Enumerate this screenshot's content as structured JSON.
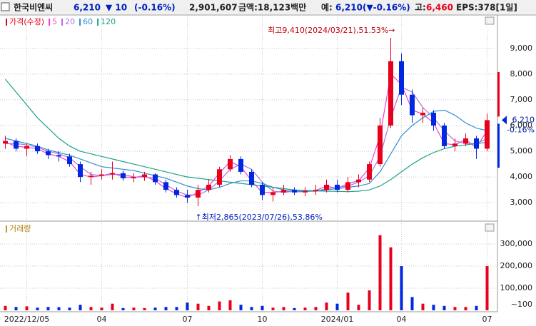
{
  "header": {
    "name": "한국비엔씨",
    "price": "6,210",
    "change": "▼ 10",
    "change_rate": "(-0.16%)",
    "volume": "2,901,607",
    "amount": "금액:18,123백만",
    "expected_label": "예:",
    "expected": "6,210(▼-0.16%)",
    "high_label": "고:",
    "high": "6,460",
    "eps": "EPS:378[1일]"
  },
  "chart_data": [
    {
      "type": "candlestick",
      "legend": "가격(수정)",
      "up_color": "#e8001c",
      "down_color": "#0028e0",
      "categories": [
        null,
        null,
        "2022/12/05",
        null,
        null,
        null,
        null,
        null,
        null,
        "04",
        null,
        null,
        null,
        null,
        null,
        null,
        null,
        "07",
        null,
        null,
        null,
        null,
        null,
        null,
        "10",
        null,
        null,
        null,
        null,
        null,
        null,
        "2024/01",
        null,
        null,
        null,
        null,
        null,
        "04",
        null,
        null,
        null,
        null,
        null,
        null,
        null,
        "07"
      ],
      "open": [
        5300,
        5400,
        5100,
        5200,
        5000,
        4850,
        4800,
        4500,
        4000,
        4050,
        4100,
        4150,
        3950,
        4000,
        4100,
        3800,
        3500,
        3300,
        3200,
        3500,
        3700,
        4300,
        4700,
        4200,
        3700,
        3300,
        3400,
        3500,
        3400,
        3450,
        3500,
        3700,
        3500,
        3800,
        3900,
        4500,
        6000,
        8500,
        7200,
        6400,
        6500,
        6000,
        5200,
        5300,
        5500,
        5100
      ],
      "high": [
        5600,
        5500,
        5300,
        5300,
        5100,
        5000,
        4900,
        4600,
        4200,
        4300,
        4600,
        4250,
        4150,
        4200,
        4150,
        3900,
        3600,
        3500,
        3700,
        3900,
        4400,
        4850,
        4800,
        4300,
        3800,
        3600,
        3700,
        3600,
        3600,
        3700,
        3900,
        3900,
        4000,
        4100,
        4600,
        6300,
        9410,
        8800,
        7400,
        6700,
        6600,
        6100,
        5500,
        5700,
        5600,
        6460
      ],
      "low": [
        5100,
        5000,
        4800,
        4900,
        4700,
        4600,
        4400,
        3800,
        3700,
        3900,
        3900,
        3850,
        3800,
        3850,
        3700,
        3400,
        3200,
        3000,
        2865,
        3400,
        3600,
        4200,
        4100,
        3600,
        3100,
        3050,
        3300,
        3300,
        3250,
        3300,
        3400,
        3400,
        3400,
        3600,
        3800,
        4400,
        5900,
        6800,
        6100,
        6100,
        5800,
        5100,
        5000,
        5200,
        4700,
        5000
      ],
      "close": [
        5400,
        5100,
        5200,
        5000,
        4850,
        4800,
        4500,
        4000,
        4050,
        4100,
        4150,
        3950,
        4000,
        4100,
        3800,
        3500,
        3300,
        3200,
        3500,
        3700,
        4300,
        4700,
        4200,
        3700,
        3300,
        3400,
        3500,
        3400,
        3450,
        3500,
        3700,
        3500,
        3800,
        3900,
        4500,
        6000,
        8500,
        7200,
        6400,
        6500,
        6000,
        5200,
        5300,
        5500,
        5100,
        6210
      ],
      "series": [
        {
          "name": "5",
          "color": "#f040d0",
          "values": [
            5350,
            5200,
            5150,
            5100,
            4900,
            4800,
            4600,
            4100,
            4000,
            4050,
            4150,
            4000,
            3980,
            4050,
            3850,
            3550,
            3350,
            3200,
            3400,
            3650,
            4150,
            4600,
            4400,
            3850,
            3400,
            3400,
            3450,
            3420,
            3430,
            3480,
            3650,
            3550,
            3750,
            3850,
            4350,
            5600,
            8000,
            7600,
            6600,
            6450,
            6100,
            5300,
            5250,
            5450,
            5150,
            5800
          ]
        },
        {
          "name": "20",
          "color": "#b070e0",
          "values": [
            5300,
            5300,
            5250,
            5150,
            5000,
            4900,
            4750,
            4400,
            4100,
            4050,
            4100,
            4100,
            4000,
            4000,
            3950,
            3700,
            3450,
            3300,
            3300,
            3500,
            3850,
            4300,
            4500,
            4300,
            3800,
            3450,
            3400,
            3450,
            3450,
            3450,
            3550,
            3600,
            3650,
            3800,
            4050,
            4800,
            6300,
            7500,
            7300,
            6700,
            6300,
            5800,
            5400,
            5300,
            5300,
            5500
          ]
        },
        {
          "name": "60",
          "color": "#2f8fd0",
          "values": [
            5500,
            5400,
            5300,
            5200,
            5050,
            4950,
            4850,
            4700,
            4550,
            4400,
            4350,
            4300,
            4250,
            4150,
            4050,
            3950,
            3800,
            3650,
            3550,
            3500,
            3600,
            3750,
            3850,
            3850,
            3750,
            3600,
            3500,
            3450,
            3450,
            3450,
            3500,
            3550,
            3600,
            3650,
            3750,
            4200,
            4900,
            5600,
            6000,
            6300,
            6550,
            6600,
            6400,
            6100,
            5900,
            5800
          ]
        },
        {
          "name": "120",
          "color": "#1fa08a",
          "values": [
            7800,
            7300,
            6800,
            6300,
            5900,
            5500,
            5200,
            5000,
            4900,
            4800,
            4700,
            4600,
            4500,
            4400,
            4300,
            4200,
            4100,
            4000,
            3950,
            3900,
            3850,
            3800,
            3750,
            3700,
            3650,
            3600,
            3550,
            3500,
            3480,
            3460,
            3450,
            3440,
            3430,
            3450,
            3500,
            3650,
            3900,
            4200,
            4500,
            4750,
            4950,
            5100,
            5200,
            5250,
            5300,
            5350
          ]
        }
      ],
      "ylim": [
        2340,
        10270
      ],
      "yticks": [
        {
          "value": 3000,
          "label": "3,000"
        },
        {
          "value": 4000,
          "label": "4,000"
        },
        {
          "value": 5000,
          "label": "5,000"
        },
        {
          "value": 6000,
          "label": "6,000"
        },
        {
          "value": 7000,
          "label": "7,000"
        },
        {
          "value": 8000,
          "label": "8,000"
        },
        {
          "value": 9000,
          "label": "9,000"
        }
      ],
      "grid": true,
      "annotations": [
        {
          "text": "최고9,410(2024/03/21),51.53%→",
          "value": 9410
        },
        {
          "text": "↑최저2,865(2023/07/26),53.86%",
          "value": 2865
        }
      ],
      "last_price": {
        "value": 6210,
        "label": "6,210"
      },
      "last_change": "-0.16%",
      "limit_up": 8080,
      "limit_down": 4360
    },
    {
      "type": "bar",
      "legend": "거래량",
      "unit": "~100",
      "values": [
        20000,
        15000,
        18000,
        12000,
        15000,
        14000,
        12000,
        25000,
        15000,
        12000,
        30000,
        10000,
        12000,
        10000,
        12000,
        15000,
        15000,
        35000,
        30000,
        20000,
        40000,
        45000,
        25000,
        15000,
        20000,
        12000,
        15000,
        10000,
        12000,
        15000,
        35000,
        30000,
        80000,
        25000,
        90000,
        340000,
        285000,
        200000,
        60000,
        30000,
        25000,
        20000,
        15000,
        15000,
        20000,
        200000
      ],
      "ylim": [
        0,
        397000
      ],
      "yticks": [
        {
          "value": 100000,
          "label": "100,000"
        },
        {
          "value": 200000,
          "label": "200,000"
        },
        {
          "value": 300000,
          "label": "300,000"
        }
      ],
      "grid": true
    }
  ]
}
